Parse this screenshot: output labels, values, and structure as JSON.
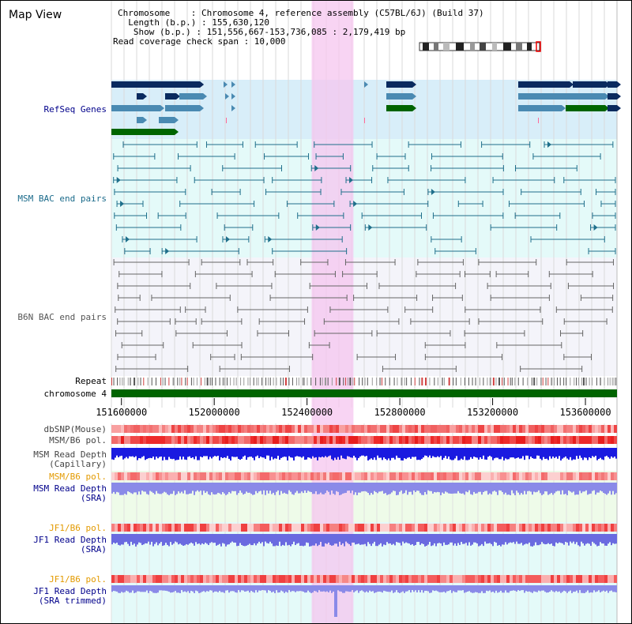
{
  "title": "Map View",
  "info": {
    "chromosome": "Chromosome    : Chromosome 4, reference assembly (C57BL/6J) (Build 37)",
    "length": "  Length (b.p.) : 155,630,120",
    "show": "   Show (b.p.) : 151,556,667-153,736,085 : 2,179,419 bp",
    "coverage": "Read coverage check span : 10,000"
  },
  "tracks": {
    "refseq": "RefSeq Genes",
    "msm_bac": "MSM BAC end pairs",
    "b6n_bac": "B6N BAC end pairs",
    "repeat": "Repeat",
    "chromosome": "chromosome 4",
    "dbsnp": "dbSNP(Mouse)",
    "msm_pol": "MSM/B6 pol.",
    "msm_depth_cap_1": "MSM Read Depth",
    "msm_depth_cap_2": "(Capillary)",
    "msm_pol_2": "MSM/B6 pol.",
    "msm_depth_sra_1": "MSM Read Depth",
    "msm_depth_sra_2": "(SRA)",
    "jf1_pol": "JF1/B6 pol.",
    "jf1_depth_1": "JF1 Read Depth",
    "jf1_depth_2": "(SRA)",
    "jf1_pol_2": "JF1/B6 pol.",
    "jf1_trim_1": "JF1 Read Depth",
    "jf1_trim_2": "(SRA trimmed)"
  },
  "axis": {
    "ticks": [
      "151600000",
      "152000000",
      "152400000",
      "152800000",
      "153200000",
      "153600000"
    ],
    "start_bp": 151556667,
    "end_bp": 153736085
  },
  "highlight": {
    "start_bp": 152420000,
    "end_bp": 152600000
  },
  "colors": {
    "navy": "#0a2a5e",
    "steel": "#4a8ab2",
    "green": "#006400",
    "msm_line": "#1f6f8b",
    "b6n_line": "#666666",
    "label_blue": "#00008b",
    "label_teal": "#1a6a8a",
    "label_orange": "#e39a00",
    "highlight": "#f5c6ef"
  }
}
